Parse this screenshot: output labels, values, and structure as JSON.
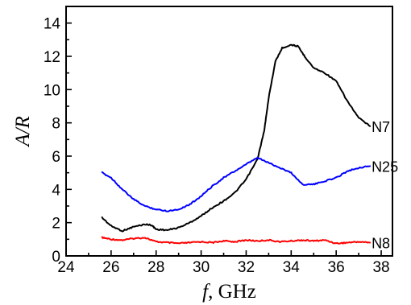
{
  "chart_data": {
    "type": "line",
    "xlabel": "f",
    "xlabel_unit": ", GHz",
    "ylabel": "A/R",
    "xlim": [
      24,
      38.5
    ],
    "ylim": [
      0,
      15
    ],
    "xticks": [
      24,
      26,
      28,
      30,
      32,
      34,
      36,
      38
    ],
    "yticks": [
      0,
      2,
      4,
      6,
      8,
      10,
      12,
      14
    ],
    "grid": false,
    "legend": "none",
    "series": [
      {
        "name": "N7",
        "color": "#000000",
        "x": [
          25.6,
          26.0,
          26.5,
          27.0,
          27.5,
          27.8,
          28.0,
          28.5,
          29.0,
          29.5,
          30.0,
          30.5,
          31.0,
          31.5,
          32.0,
          32.5,
          32.8,
          33.0,
          33.3,
          33.6,
          34.0,
          34.3,
          34.6,
          35.0,
          35.5,
          36.0,
          36.5,
          37.0,
          37.5
        ],
        "y": [
          2.3,
          1.8,
          1.5,
          1.75,
          1.9,
          1.85,
          1.6,
          1.55,
          1.7,
          2.0,
          2.4,
          2.9,
          3.3,
          3.8,
          4.6,
          5.8,
          7.5,
          9.5,
          11.7,
          12.5,
          12.7,
          12.6,
          12.0,
          11.3,
          11.0,
          10.5,
          9.3,
          8.3,
          7.8
        ]
      },
      {
        "name": "N25",
        "color": "#0000ff",
        "x": [
          25.6,
          26.0,
          26.5,
          27.0,
          27.5,
          28.0,
          28.5,
          29.0,
          29.5,
          30.0,
          30.5,
          31.0,
          31.5,
          32.0,
          32.5,
          33.0,
          33.5,
          34.0,
          34.5,
          35.0,
          35.5,
          36.0,
          36.5,
          37.0,
          37.5
        ],
        "y": [
          5.0,
          4.7,
          4.0,
          3.4,
          3.0,
          2.8,
          2.7,
          2.8,
          3.1,
          3.6,
          4.2,
          4.7,
          5.1,
          5.5,
          5.9,
          5.6,
          5.3,
          5.0,
          4.3,
          4.3,
          4.5,
          4.7,
          5.1,
          5.3,
          5.4
        ]
      },
      {
        "name": "N8",
        "color": "#ff0000",
        "x": [
          25.6,
          26.0,
          26.5,
          27.0,
          27.5,
          28.0,
          28.5,
          29.0,
          29.5,
          30.0,
          30.5,
          31.0,
          31.5,
          32.0,
          32.5,
          33.0,
          33.5,
          34.0,
          34.5,
          35.0,
          35.5,
          36.0,
          36.5,
          37.0,
          37.5
        ],
        "y": [
          1.1,
          1.0,
          0.95,
          1.05,
          1.1,
          0.85,
          0.8,
          0.75,
          0.8,
          0.85,
          0.8,
          0.9,
          0.85,
          0.95,
          0.9,
          0.95,
          0.85,
          0.9,
          0.95,
          0.9,
          0.95,
          0.75,
          0.8,
          0.85,
          0.8
        ]
      }
    ]
  }
}
